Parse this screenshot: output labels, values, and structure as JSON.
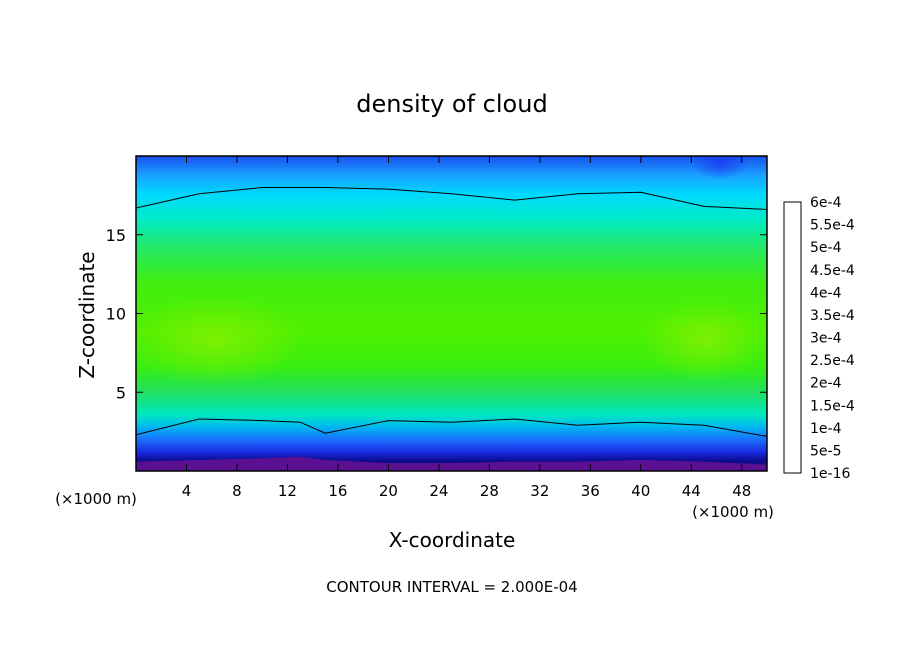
{
  "chart_data": {
    "type": "heatmap",
    "title": "density of cloud",
    "xlabel": "X-coordinate",
    "ylabel": "Z-coordinate",
    "x_unit": "(×1000 m)",
    "y_unit": "(×1000 m)",
    "xlim": [
      0,
      50
    ],
    "ylim": [
      0,
      20
    ],
    "x_ticks": [
      4,
      8,
      12,
      16,
      20,
      24,
      28,
      32,
      36,
      40,
      44,
      48
    ],
    "y_ticks": [
      5,
      10,
      15
    ],
    "footer": "CONTOUR INTERVAL = 2.000E-04",
    "contour_interval": 0.0002,
    "contour_level": 0.0002,
    "colorbar": {
      "levels": [
        "1e-16",
        "5e-5",
        "1e-4",
        "1.5e-4",
        "2e-4",
        "2.5e-4",
        "3e-4",
        "3.5e-4",
        "4e-4",
        "4.5e-4",
        "5e-4",
        "5.5e-4",
        "6e-4"
      ],
      "colors": [
        "#6a1fa8",
        "#0a0a9a",
        "#1a3cf0",
        "#1a8cff",
        "#00dcff",
        "#00f0a0",
        "#20e040",
        "#38f000",
        "#90f000",
        "#f0c000",
        "#ff6000",
        "#ff2020",
        "#ff9090"
      ]
    },
    "profile_x_km": [
      0,
      5,
      10,
      13,
      15,
      20,
      25,
      30,
      35,
      40,
      45,
      50
    ],
    "upper_contour_z_km": [
      16.7,
      17.6,
      18.0,
      18.0,
      18.0,
      17.9,
      17.6,
      17.2,
      17.6,
      17.7,
      16.8,
      16.6
    ],
    "lower_contour_z_km": [
      2.3,
      3.3,
      3.2,
      3.1,
      2.4,
      3.2,
      3.1,
      3.3,
      2.9,
      3.1,
      2.9,
      2.2
    ],
    "cloud_base_z_km": [
      0.6,
      0.7,
      0.8,
      0.9,
      0.7,
      0.5,
      0.5,
      0.6,
      0.6,
      0.7,
      0.6,
      0.4
    ]
  }
}
